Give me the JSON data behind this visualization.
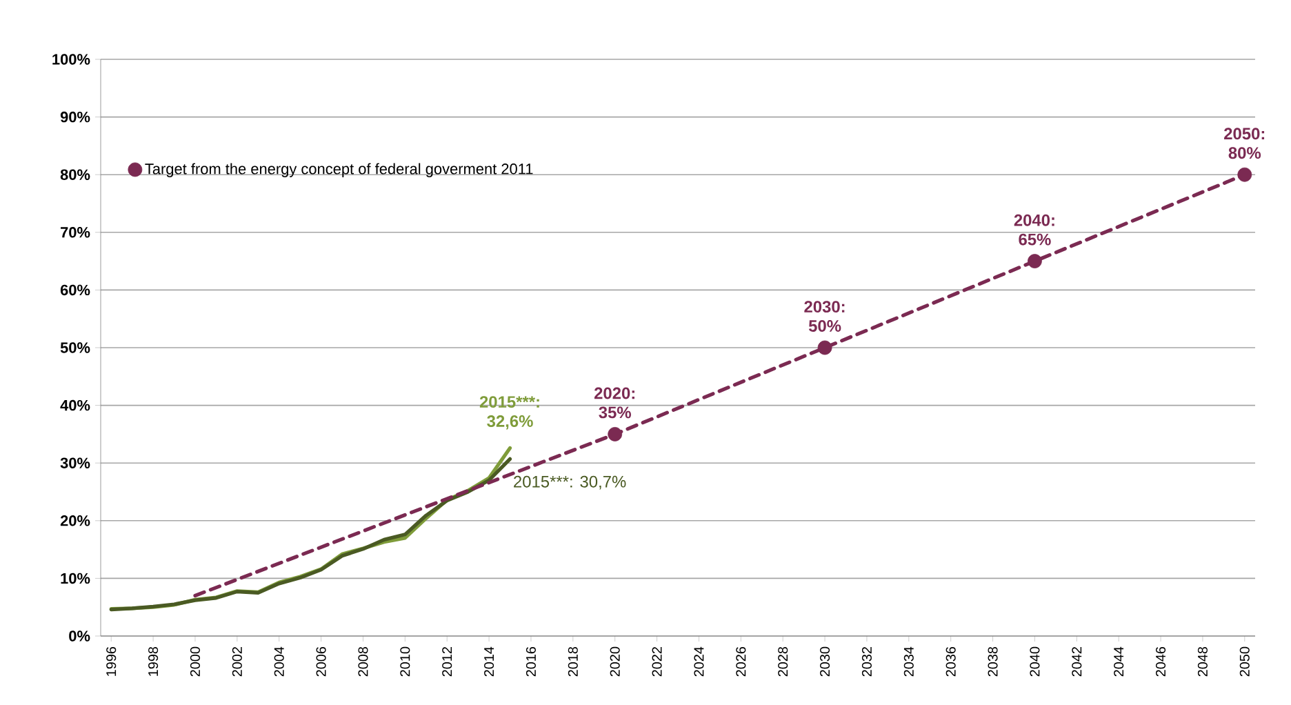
{
  "chart_data": {
    "type": "line",
    "x": [
      1996,
      1997,
      1998,
      1999,
      2000,
      2001,
      2002,
      2003,
      2004,
      2005,
      2006,
      2007,
      2008,
      2009,
      2010,
      2011,
      2012,
      2013,
      2014,
      2015
    ],
    "series": [
      {
        "color": "#7f9c3a",
        "values": [
          4.7,
          4.8,
          5.0,
          5.4,
          6.3,
          6.7,
          7.8,
          7.6,
          9.3,
          10.3,
          11.6,
          14.2,
          15.2,
          16.3,
          17.0,
          20.4,
          23.6,
          25.2,
          27.4,
          32.6
        ],
        "value_labels": [
          null,
          null,
          null,
          null,
          null,
          null,
          null,
          null,
          null,
          null,
          null,
          null,
          null,
          null,
          null,
          null,
          null,
          null,
          null,
          "2015***: 32,6%"
        ]
      },
      {
        "color": "#4a5a23",
        "values": [
          4.6,
          4.8,
          5.1,
          5.5,
          6.2,
          6.6,
          7.7,
          7.5,
          9.1,
          10.1,
          11.5,
          13.9,
          15.1,
          16.7,
          17.6,
          20.9,
          23.5,
          25.0,
          27.0,
          30.7
        ],
        "value_labels": [
          null,
          null,
          null,
          null,
          null,
          null,
          null,
          null,
          null,
          null,
          null,
          null,
          null,
          null,
          null,
          null,
          null,
          null,
          null,
          "2015***: 30,7%"
        ]
      },
      {
        "type": "line",
        "color": "#7b2a52",
        "line_style": "dashed",
        "marker": "none",
        "x": [
          2000,
          2020,
          2030,
          2040,
          2050
        ],
        "values": [
          7,
          35,
          50,
          65,
          80
        ]
      },
      {
        "type": "scatter",
        "name": "Target from the energy concept of federal goverment 2011",
        "color": "#7b2a52",
        "marker": "circle",
        "x": [
          2020,
          2030,
          2040,
          2050
        ],
        "values": [
          35,
          50,
          65,
          80
        ],
        "value_labels": [
          "2020: 35%",
          "2030: 50%",
          "2040: 65%",
          "2050: 80%"
        ]
      }
    ],
    "xlim": [
      1995.5,
      2050.5
    ],
    "xticks": [
      1996,
      1998,
      2000,
      2002,
      2004,
      2006,
      2008,
      2010,
      2012,
      2014,
      2016,
      2018,
      2020,
      2022,
      2024,
      2026,
      2028,
      2030,
      2032,
      2034,
      2036,
      2038,
      2040,
      2042,
      2044,
      2046,
      2048,
      2050
    ],
    "ylim": [
      0,
      100
    ],
    "yticks": [
      {
        "value": 0,
        "label": "0%"
      },
      {
        "value": 10,
        "label": "10%"
      },
      {
        "value": 20,
        "label": "20%"
      },
      {
        "value": 30,
        "label": "30%"
      },
      {
        "value": 40,
        "label": "40%"
      },
      {
        "value": 50,
        "label": "50%"
      },
      {
        "value": 60,
        "label": "60%"
      },
      {
        "value": 70,
        "label": "70%"
      },
      {
        "value": 80,
        "label": "80%"
      },
      {
        "value": 90,
        "label": "90%"
      },
      {
        "value": 100,
        "label": "100%"
      }
    ],
    "grid": "y",
    "legend": "top left"
  }
}
